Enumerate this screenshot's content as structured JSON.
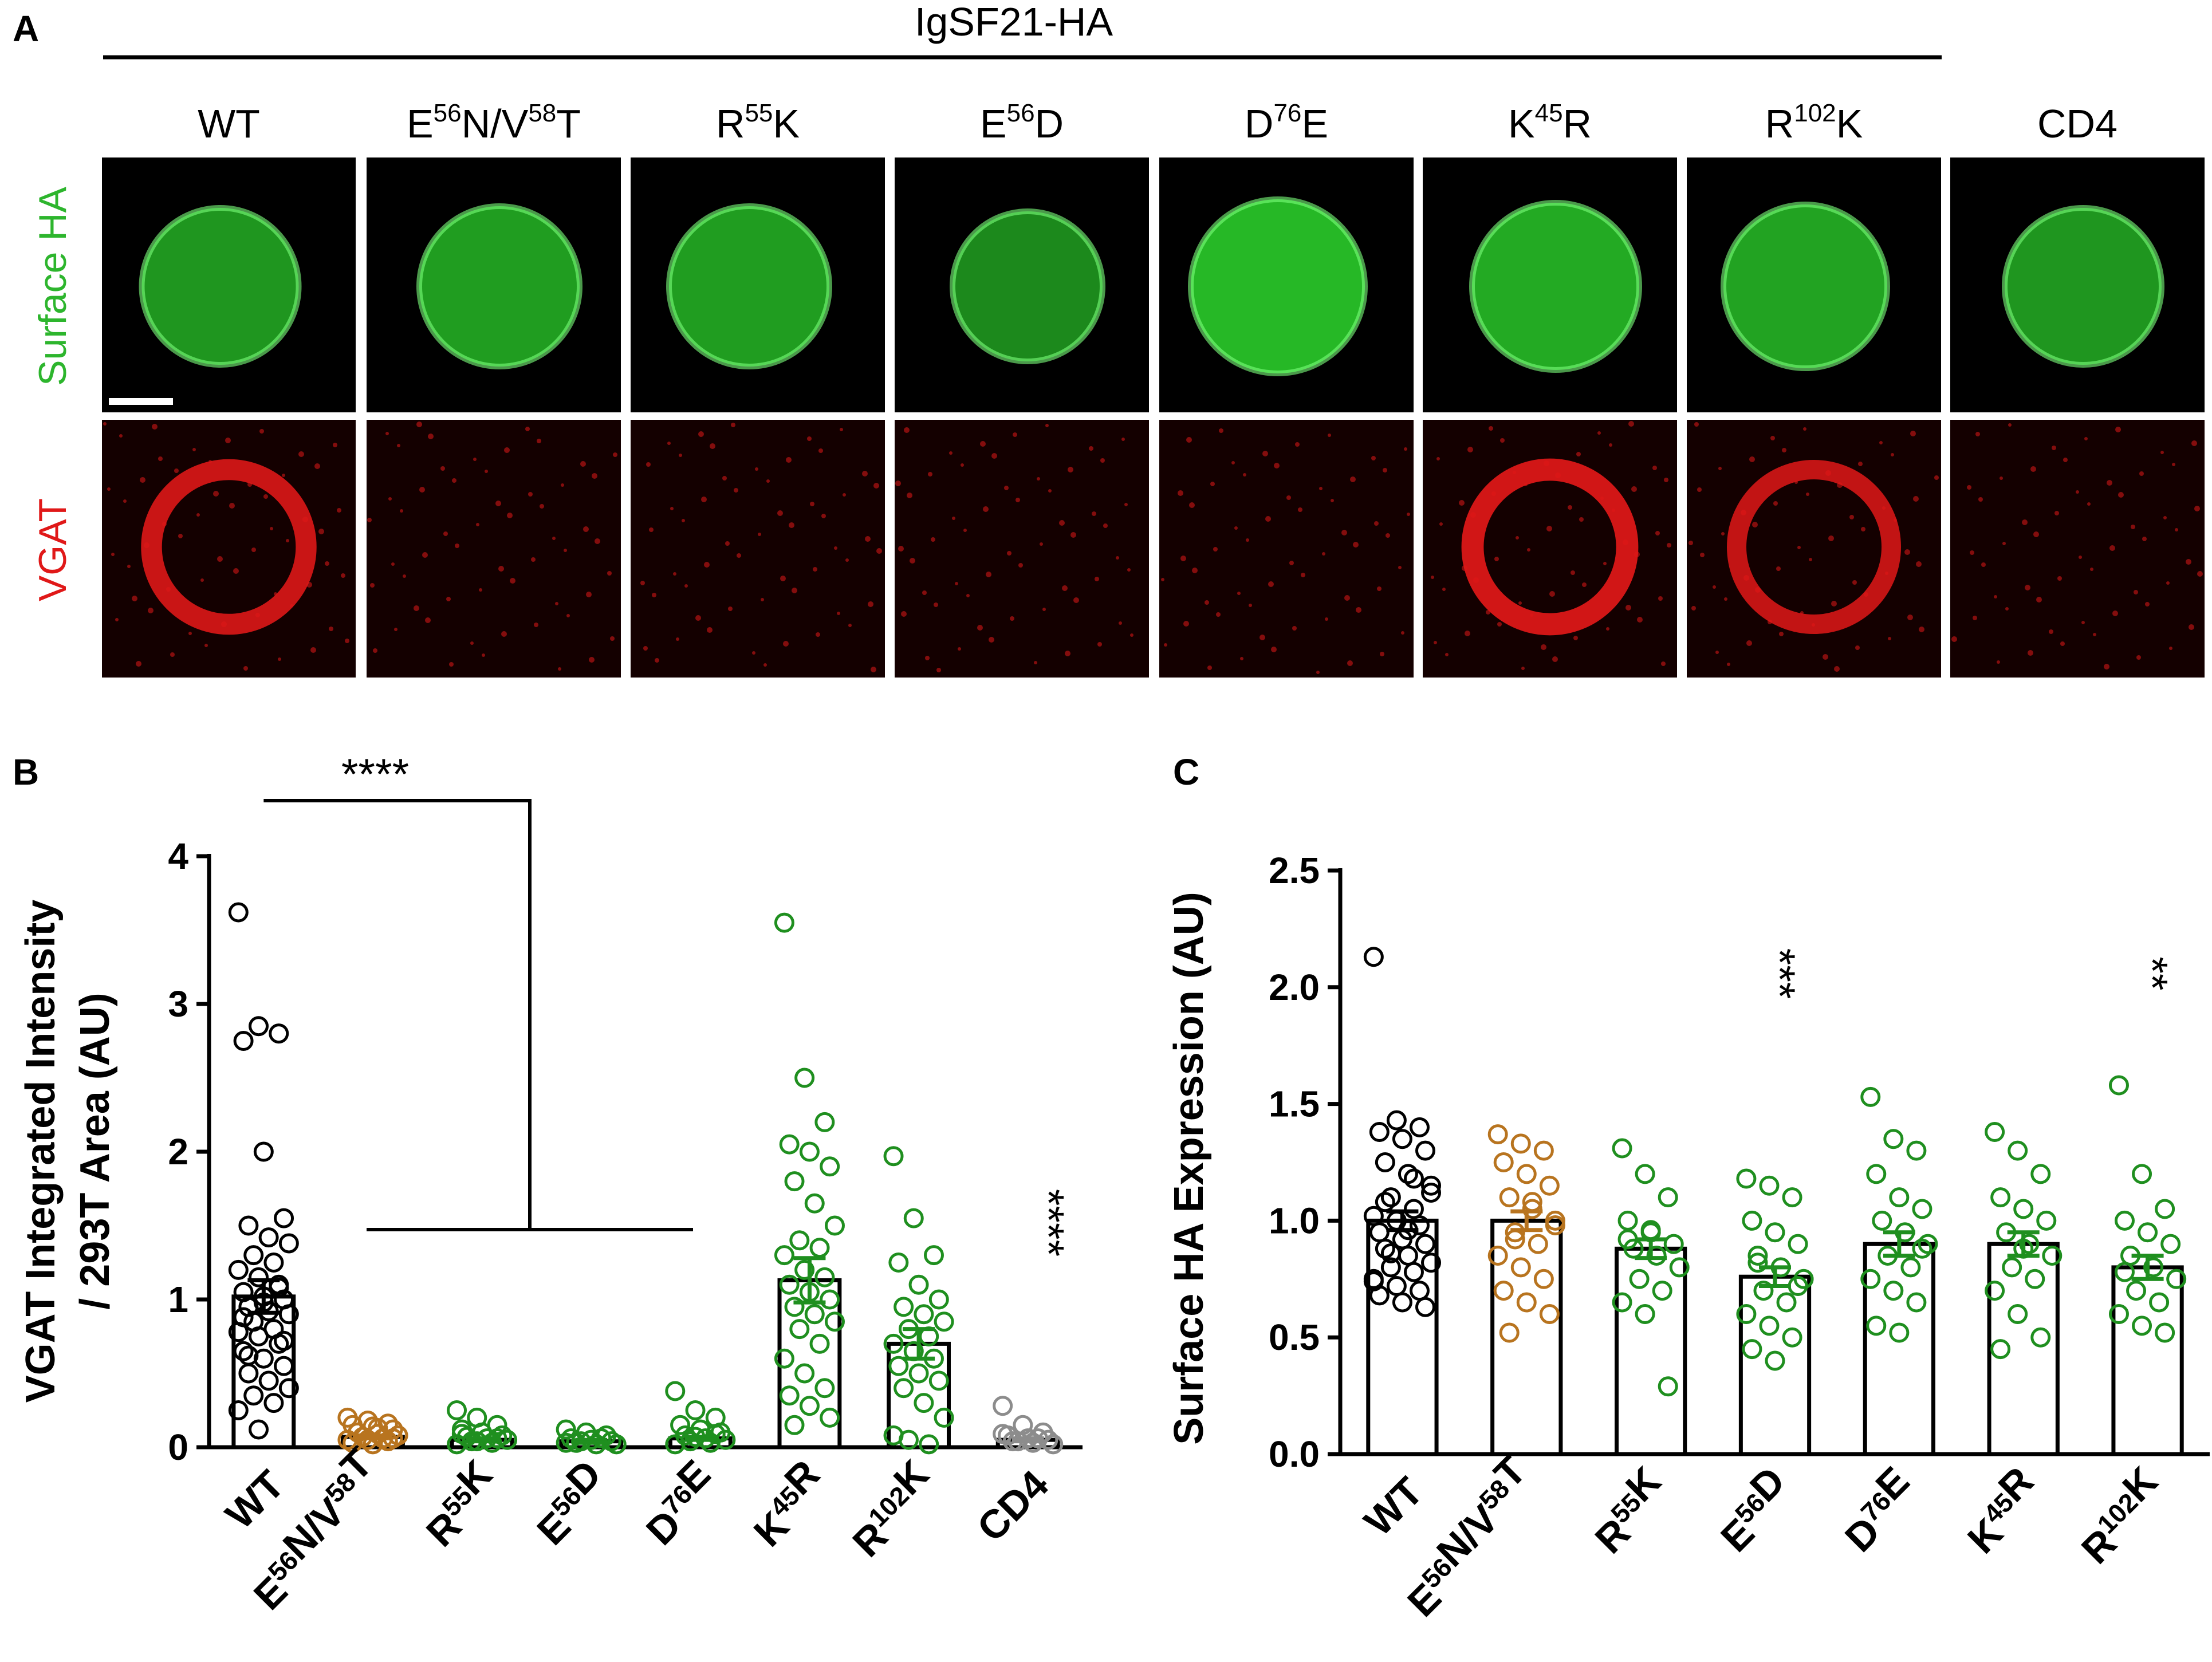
{
  "figure": {
    "panel_letters": [
      "A",
      "B",
      "C"
    ],
    "construct_header": "IgSF21-HA",
    "row_labels": [
      "Surface HA",
      "VGAT"
    ],
    "row_label_colors": [
      "#2db52d",
      "#e01818"
    ]
  },
  "colors": {
    "black_group": "#000000",
    "brown_group": "#b8741f",
    "green_group": "#1f8f1f",
    "gray_group": "#8c8c8c",
    "surface_ha": "#2ee02e",
    "vgat": "#e01818"
  },
  "panel_a": {
    "columns": [
      {
        "base": "WT",
        "sup": "",
        "rest": ""
      },
      {
        "base": "E",
        "sup": "56",
        "rest": "N/V",
        "sup2": "58",
        "rest2": "T"
      },
      {
        "base": "R",
        "sup": "55",
        "rest": "K"
      },
      {
        "base": "E",
        "sup": "56",
        "rest": "D"
      },
      {
        "base": "D",
        "sup": "76",
        "rest": "E"
      },
      {
        "base": "K",
        "sup": "45",
        "rest": "R"
      },
      {
        "base": "R",
        "sup": "102",
        "rest": "K"
      },
      {
        "base": "CD4",
        "sup": "",
        "rest": ""
      }
    ],
    "surface_ha_signal": [
      0.7,
      0.75,
      0.75,
      0.6,
      0.95,
      0.85,
      0.8,
      0.7
    ],
    "vgat_signal": [
      0.85,
      0.25,
      0.25,
      0.2,
      0.25,
      0.95,
      0.75,
      0.15
    ]
  },
  "chart_data": [
    {
      "type": "bar",
      "panel": "B",
      "ylabel_line1": "VGAT Integrated Intensity",
      "ylabel_line2": "/ 293T  Area  (AU)",
      "ylim": [
        0,
        4
      ],
      "yticks": [
        "0",
        "1",
        "2",
        "3",
        "4"
      ],
      "categories": [
        {
          "base": "WT",
          "sup": "",
          "rest": ""
        },
        {
          "base": "E",
          "sup": "56",
          "rest": "N/V",
          "sup2": "58",
          "rest2": "T"
        },
        {
          "base": "R",
          "sup": "55",
          "rest": "K"
        },
        {
          "base": "E",
          "sup": "56",
          "rest": "D"
        },
        {
          "base": "D",
          "sup": "76",
          "rest": "E"
        },
        {
          "base": "K",
          "sup": "45",
          "rest": "R"
        },
        {
          "base": "R",
          "sup": "102",
          "rest": "K"
        },
        {
          "base": "CD4",
          "sup": "",
          "rest": ""
        }
      ],
      "bar_means": [
        1.02,
        0.07,
        0.05,
        0.04,
        0.06,
        1.13,
        0.7,
        0.05
      ],
      "sem": [
        0.11,
        0.01,
        0.01,
        0.01,
        0.01,
        0.15,
        0.1,
        0.01
      ],
      "group_colors": [
        "black",
        "brown",
        "green",
        "green",
        "green",
        "green",
        "green",
        "gray"
      ],
      "points": [
        [
          3.62,
          2.85,
          2.8,
          2.75,
          2.0,
          1.55,
          1.5,
          1.42,
          1.38,
          1.3,
          1.25,
          1.2,
          1.15,
          1.1,
          1.05,
          1.02,
          1.0,
          0.95,
          0.92,
          0.9,
          0.85,
          0.8,
          0.78,
          0.75,
          0.7,
          0.65,
          0.6,
          0.55,
          0.5,
          0.45,
          0.4,
          0.35,
          0.3,
          0.25,
          0.12,
          1.08,
          0.88,
          0.98,
          0.72,
          0.62
        ],
        [
          0.2,
          0.18,
          0.16,
          0.15,
          0.14,
          0.12,
          0.1,
          0.09,
          0.08,
          0.07,
          0.06,
          0.05,
          0.05,
          0.04,
          0.03,
          0.02,
          0.06,
          0.1,
          0.13,
          0.08
        ],
        [
          0.25,
          0.2,
          0.15,
          0.12,
          0.1,
          0.08,
          0.07,
          0.06,
          0.05,
          0.04,
          0.03,
          0.02,
          0.04,
          0.06,
          0.09
        ],
        [
          0.12,
          0.1,
          0.08,
          0.06,
          0.05,
          0.04,
          0.03,
          0.02,
          0.02,
          0.04,
          0.06,
          0.03
        ],
        [
          0.38,
          0.25,
          0.2,
          0.15,
          0.12,
          0.1,
          0.08,
          0.06,
          0.05,
          0.04,
          0.03,
          0.02,
          0.07,
          0.09
        ],
        [
          3.55,
          2.5,
          2.2,
          2.05,
          2.0,
          1.9,
          1.8,
          1.65,
          1.5,
          1.4,
          1.35,
          1.3,
          1.2,
          1.15,
          1.1,
          1.05,
          1.0,
          0.95,
          0.9,
          0.85,
          0.8,
          0.7,
          0.6,
          0.5,
          0.4,
          0.35,
          0.28,
          0.2,
          0.15
        ],
        [
          1.97,
          1.55,
          1.3,
          1.25,
          1.1,
          1.0,
          0.95,
          0.9,
          0.85,
          0.8,
          0.75,
          0.7,
          0.65,
          0.6,
          0.55,
          0.5,
          0.45,
          0.4,
          0.3,
          0.2,
          0.05,
          0.02,
          0.08
        ],
        [
          0.28,
          0.15,
          0.1,
          0.08,
          0.06,
          0.05,
          0.04,
          0.03,
          0.02,
          0.04,
          0.06,
          0.09
        ]
      ],
      "bracket_label": "****",
      "cd4_label": "****"
    },
    {
      "type": "bar",
      "panel": "C",
      "ylabel": "Surface HA Expression (AU)",
      "ylim": [
        0,
        2.5
      ],
      "yticks": [
        "0.0",
        "0.5",
        "1.0",
        "1.5",
        "2.0",
        "2.5"
      ],
      "categories": [
        {
          "base": "WT",
          "sup": "",
          "rest": ""
        },
        {
          "base": "E",
          "sup": "56",
          "rest": "N/V",
          "sup2": "58",
          "rest2": "T"
        },
        {
          "base": "R",
          "sup": "55",
          "rest": "K"
        },
        {
          "base": "E",
          "sup": "56",
          "rest": "D"
        },
        {
          "base": "D",
          "sup": "76",
          "rest": "E"
        },
        {
          "base": "K",
          "sup": "45",
          "rest": "R"
        },
        {
          "base": "R",
          "sup": "102",
          "rest": "K"
        }
      ],
      "bar_means": [
        1.0,
        1.0,
        0.88,
        0.76,
        0.9,
        0.9,
        0.8
      ],
      "sem": [
        0.04,
        0.04,
        0.04,
        0.04,
        0.05,
        0.05,
        0.05
      ],
      "group_colors": [
        "black",
        "brown",
        "green",
        "green",
        "green",
        "green",
        "green"
      ],
      "points": [
        [
          2.13,
          1.43,
          1.4,
          1.38,
          1.35,
          1.3,
          1.25,
          1.2,
          1.15,
          1.1,
          1.05,
          1.02,
          1.0,
          0.98,
          0.95,
          0.92,
          0.9,
          0.88,
          0.85,
          0.82,
          0.8,
          0.78,
          0.75,
          0.72,
          0.7,
          0.68,
          0.65,
          0.63,
          1.08,
          0.96,
          1.12,
          0.86,
          1.18,
          0.74
        ],
        [
          1.37,
          1.33,
          1.3,
          1.25,
          1.2,
          1.15,
          1.1,
          1.05,
          1.0,
          0.95,
          0.9,
          0.85,
          0.8,
          0.75,
          0.7,
          0.65,
          0.6,
          0.52,
          1.08,
          0.98,
          0.92
        ],
        [
          1.31,
          1.2,
          1.1,
          1.0,
          0.95,
          0.9,
          0.88,
          0.85,
          0.8,
          0.75,
          0.7,
          0.65,
          0.6,
          0.29,
          0.92,
          0.96
        ],
        [
          1.18,
          1.15,
          1.1,
          1.0,
          0.95,
          0.9,
          0.85,
          0.8,
          0.75,
          0.7,
          0.65,
          0.6,
          0.55,
          0.5,
          0.45,
          0.4,
          0.72,
          0.82
        ],
        [
          1.53,
          1.35,
          1.3,
          1.2,
          1.1,
          1.05,
          1.0,
          0.95,
          0.9,
          0.85,
          0.8,
          0.75,
          0.7,
          0.65,
          0.55,
          0.52,
          0.88
        ],
        [
          1.38,
          1.3,
          1.2,
          1.1,
          1.05,
          1.0,
          0.95,
          0.9,
          0.85,
          0.8,
          0.75,
          0.7,
          0.6,
          0.5,
          0.45,
          0.88
        ],
        [
          1.58,
          1.2,
          1.05,
          1.0,
          0.95,
          0.9,
          0.85,
          0.8,
          0.75,
          0.7,
          0.65,
          0.6,
          0.55,
          0.52,
          0.78
        ]
      ],
      "significance": [
        {
          "category_index": 3,
          "label": "***"
        },
        {
          "category_index": 6,
          "label": "**"
        }
      ]
    }
  ]
}
